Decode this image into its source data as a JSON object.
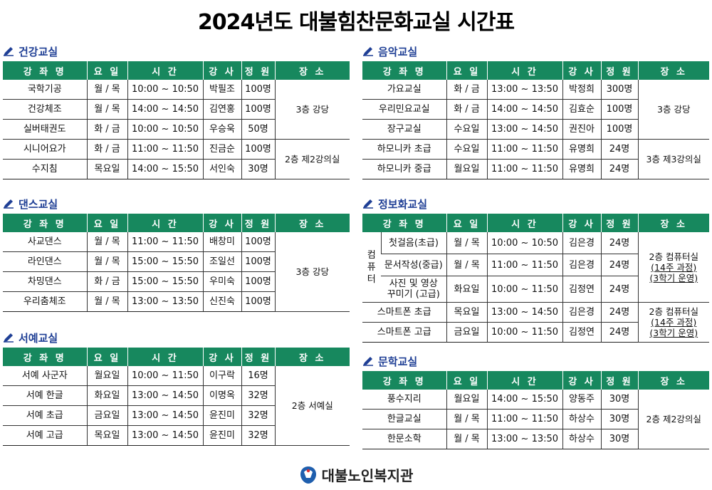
{
  "title": "2024년도 대불힘찬문화교실 시간표",
  "headers": [
    "강 좌 명",
    "요 일",
    "시 간",
    "강 사",
    "정 원",
    "장 소"
  ],
  "sections": {
    "health": {
      "title": "건강교실",
      "rows": [
        {
          "name": "국학기공",
          "day": "월 / 목",
          "time": "10:00 ~ 10:50",
          "teacher": "박필조",
          "cap": "100명"
        },
        {
          "name": "건강체조",
          "day": "월 / 목",
          "time": "14:00 ~ 14:50",
          "teacher": "김연홍",
          "cap": "100명"
        },
        {
          "name": "실버태권도",
          "day": "화 / 금",
          "time": "10:00 ~ 10:50",
          "teacher": "우승욱",
          "cap": "50명"
        },
        {
          "name": "시니어요가",
          "day": "화 / 금",
          "time": "11:00 ~ 11:50",
          "teacher": "진금순",
          "cap": "100명"
        },
        {
          "name": "수지침",
          "day": "목요일",
          "time": "14:00 ~ 15:50",
          "teacher": "서인숙",
          "cap": "30명"
        }
      ],
      "locations": [
        "3층 강당",
        "2층 제2강의실"
      ]
    },
    "dance": {
      "title": "댄스교실",
      "rows": [
        {
          "name": "사교댄스",
          "day": "월 / 목",
          "time": "11:00 ~ 11:50",
          "teacher": "배창미",
          "cap": "100명"
        },
        {
          "name": "라인댄스",
          "day": "월 / 목",
          "time": "15:00 ~ 15:50",
          "teacher": "조일선",
          "cap": "100명"
        },
        {
          "name": "차밍댄스",
          "day": "화 / 금",
          "time": "15:00 ~ 15:50",
          "teacher": "우미숙",
          "cap": "100명"
        },
        {
          "name": "우리춤체조",
          "day": "월 / 목",
          "time": "13:00 ~ 13:50",
          "teacher": "신진숙",
          "cap": "100명"
        }
      ],
      "locations": [
        "3층 강당"
      ]
    },
    "calligraphy": {
      "title": "서예교실",
      "rows": [
        {
          "name": "서예 사군자",
          "day": "월요일",
          "time": "10:00 ~ 11:50",
          "teacher": "이구락",
          "cap": "16명"
        },
        {
          "name": "서예 한글",
          "day": "화요일",
          "time": "13:00 ~ 14:50",
          "teacher": "이명옥",
          "cap": "32명"
        },
        {
          "name": "서예 초급",
          "day": "금요일",
          "time": "13:00 ~ 14:50",
          "teacher": "윤진미",
          "cap": "32명"
        },
        {
          "name": "서예 고급",
          "day": "목요일",
          "time": "13:00 ~ 14:50",
          "teacher": "윤진미",
          "cap": "32명"
        }
      ],
      "locations": [
        "2층 서예실"
      ]
    },
    "music": {
      "title": "음악교실",
      "rows": [
        {
          "name": "가요교실",
          "day": "화 / 금",
          "time": "13:00 ~ 13:50",
          "teacher": "박정희",
          "cap": "300명"
        },
        {
          "name": "우리민요교실",
          "day": "화 / 금",
          "time": "14:00 ~ 14:50",
          "teacher": "김효순",
          "cap": "100명"
        },
        {
          "name": "장구교실",
          "day": "수요일",
          "time": "13:00 ~ 14:50",
          "teacher": "권진아",
          "cap": "100명"
        },
        {
          "name": "하모니카 초급",
          "day": "수요일",
          "time": "11:00 ~ 11:50",
          "teacher": "유명희",
          "cap": "24명"
        },
        {
          "name": "하모니카 중급",
          "day": "월요일",
          "time": "11:00 ~ 11:50",
          "teacher": "유명희",
          "cap": "24명"
        }
      ],
      "locations": [
        "3층 강당",
        "3층 제3강의실"
      ]
    },
    "info": {
      "title": "정보화교실",
      "group_label": [
        "컴",
        "퓨",
        "터"
      ],
      "group_rows": [
        {
          "name": "첫걸음(초급)",
          "day": "월 / 목",
          "time": "10:00 ~ 10:50",
          "teacher": "김은경",
          "cap": "24명"
        },
        {
          "name": "문서작성(중급)",
          "day": "월 / 목",
          "time": "11:00 ~ 11:50",
          "teacher": "김은경",
          "cap": "24명"
        },
        {
          "name_line1": "사진 및 영상",
          "name_line2": "꾸미기 (고급)",
          "day": "화요일",
          "time": "10:00 ~ 11:50",
          "teacher": "김정연",
          "cap": "24명"
        }
      ],
      "rows": [
        {
          "name": "스마트폰 초급",
          "day": "목요일",
          "time": "13:00 ~ 14:50",
          "teacher": "김은경",
          "cap": "24명"
        },
        {
          "name": "스마트폰 고급",
          "day": "금요일",
          "time": "10:00 ~ 11:50",
          "teacher": "김정연",
          "cap": "24명"
        }
      ],
      "location_1": {
        "line1": "2층 컴퓨터실",
        "line2": "(14주 과정)",
        "line3": "(3학기 운영)"
      },
      "location_2": {
        "line1": "2층 컴퓨터실",
        "line2": "(14주 과정)",
        "line3": "(3학기 운영)"
      }
    },
    "literature": {
      "title": "문학교실",
      "rows": [
        {
          "name": "풍수지리",
          "day": "월요일",
          "time": "14:00 ~ 15:50",
          "teacher": "양동주",
          "cap": "30명"
        },
        {
          "name": "한글교실",
          "day": "월 / 목",
          "time": "11:00 ~ 11:50",
          "teacher": "하상수",
          "cap": "30명"
        },
        {
          "name": "한문소학",
          "day": "월 / 목",
          "time": "13:00 ~ 13:50",
          "teacher": "하상수",
          "cap": "30명"
        }
      ],
      "locations": [
        "2층 제2강의실"
      ]
    }
  },
  "footer": {
    "org_name": "대불노인복지관"
  },
  "colors": {
    "header_bg": "#17885e",
    "section_title": "#1f3f95"
  },
  "icons": {
    "section": "pencil-icon",
    "footer": "logo-icon"
  }
}
